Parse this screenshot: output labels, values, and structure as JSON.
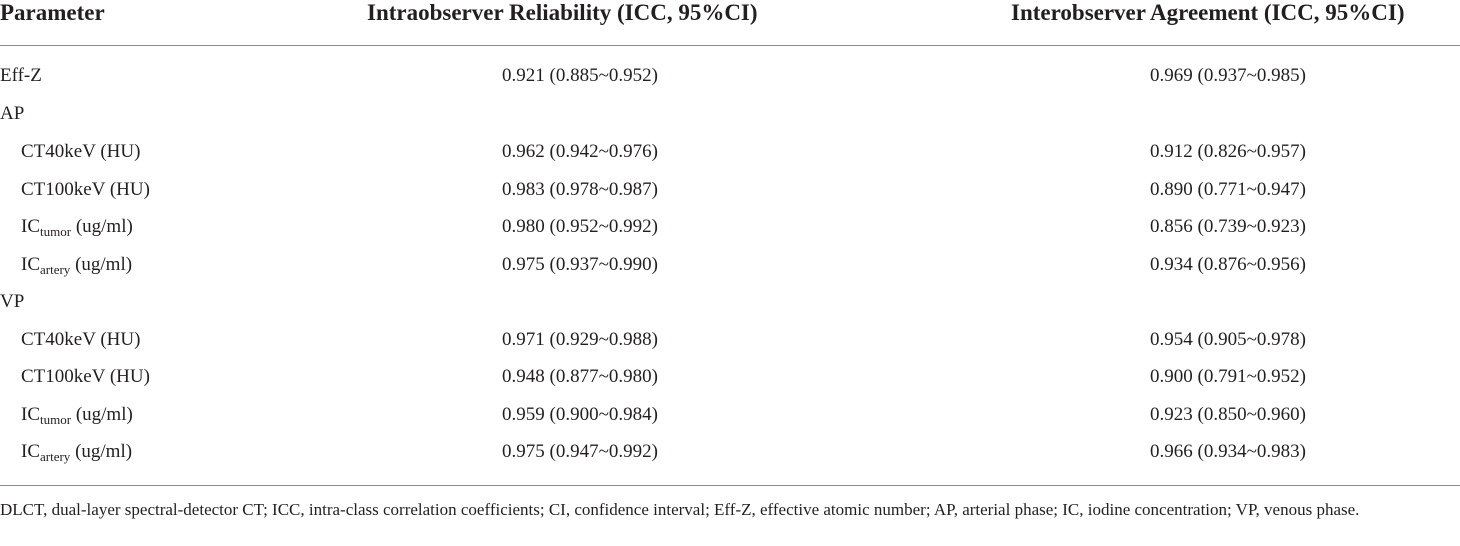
{
  "table": {
    "headers": {
      "parameter": "Parameter",
      "intra": "Intraobserver Reliability (ICC, 95%CI)",
      "inter": "Interobserver Agreement (ICC, 95%CI)"
    },
    "rows": [
      {
        "param": "Eff-Z",
        "sub": "",
        "unit": "",
        "intra": "0.921 (0.885~0.952)",
        "inter": "0.969 (0.937~0.985)"
      },
      {
        "param": "AP",
        "sub": "",
        "unit": "",
        "intra": "",
        "inter": ""
      },
      {
        "param": "CT40keV (HU)",
        "sub": "",
        "unit": "",
        "intra": "0.962 (0.942~0.976)",
        "inter": "0.912 (0.826~0.957)"
      },
      {
        "param": "CT100keV (HU)",
        "sub": "",
        "unit": "",
        "intra": "0.983 (0.978~0.987)",
        "inter": "0.890 (0.771~0.947)"
      },
      {
        "param": "IC",
        "sub": "tumor",
        "unit": " (ug/ml)",
        "intra": "0.980 (0.952~0.992)",
        "inter": "0.856 (0.739~0.923)"
      },
      {
        "param": "IC",
        "sub": "artery",
        "unit": " (ug/ml)",
        "intra": "0.975 (0.937~0.990)",
        "inter": "0.934 (0.876~0.956)"
      },
      {
        "param": "VP",
        "sub": "",
        "unit": "",
        "intra": "",
        "inter": ""
      },
      {
        "param": "CT40keV (HU)",
        "sub": "",
        "unit": "",
        "intra": "0.971 (0.929~0.988)",
        "inter": "0.954 (0.905~0.978)"
      },
      {
        "param": "CT100keV (HU)",
        "sub": "",
        "unit": "",
        "intra": "0.948 (0.877~0.980)",
        "inter": "0.900 (0.791~0.952)"
      },
      {
        "param": "IC",
        "sub": "tumor",
        "unit": " (ug/ml)",
        "intra": "0.959 (0.900~0.984)",
        "inter": "0.923 (0.850~0.960)"
      },
      {
        "param": "IC",
        "sub": "artery",
        "unit": " (ug/ml)",
        "intra": "0.975 (0.947~0.992)",
        "inter": "0.966 (0.934~0.983)"
      }
    ]
  },
  "footnote": "DLCT, dual-layer spectral-detector CT; ICC, intra-class correlation coefficients; CI, confidence interval; Eff-Z, effective atomic number; AP, arterial phase; IC, iodine concentration; VP, venous phase."
}
